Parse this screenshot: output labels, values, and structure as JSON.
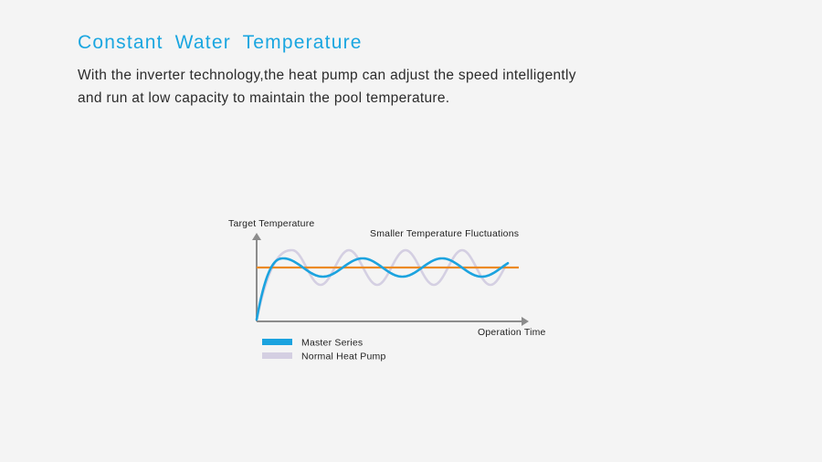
{
  "heading": {
    "title": "Constant  Water  Temperature",
    "description_line1": "With the inverter technology,the heat pump can adjust the speed intelligently",
    "description_line2": "and run at low capacity to maintain the pool temperature."
  },
  "diagram": {
    "y_axis_label": "Target Temperature",
    "x_axis_label": "Operation Time",
    "annotation": "Smaller Temperature Fluctuations",
    "legend": [
      {
        "label": "Master Series",
        "color": "#1ba3df"
      },
      {
        "label": "Normal Heat Pump",
        "color": "#d4cfe2"
      }
    ],
    "colors": {
      "axis": "#8c8c8c",
      "target_line": "#ec8a23",
      "title": "#1aa6e0"
    }
  }
}
